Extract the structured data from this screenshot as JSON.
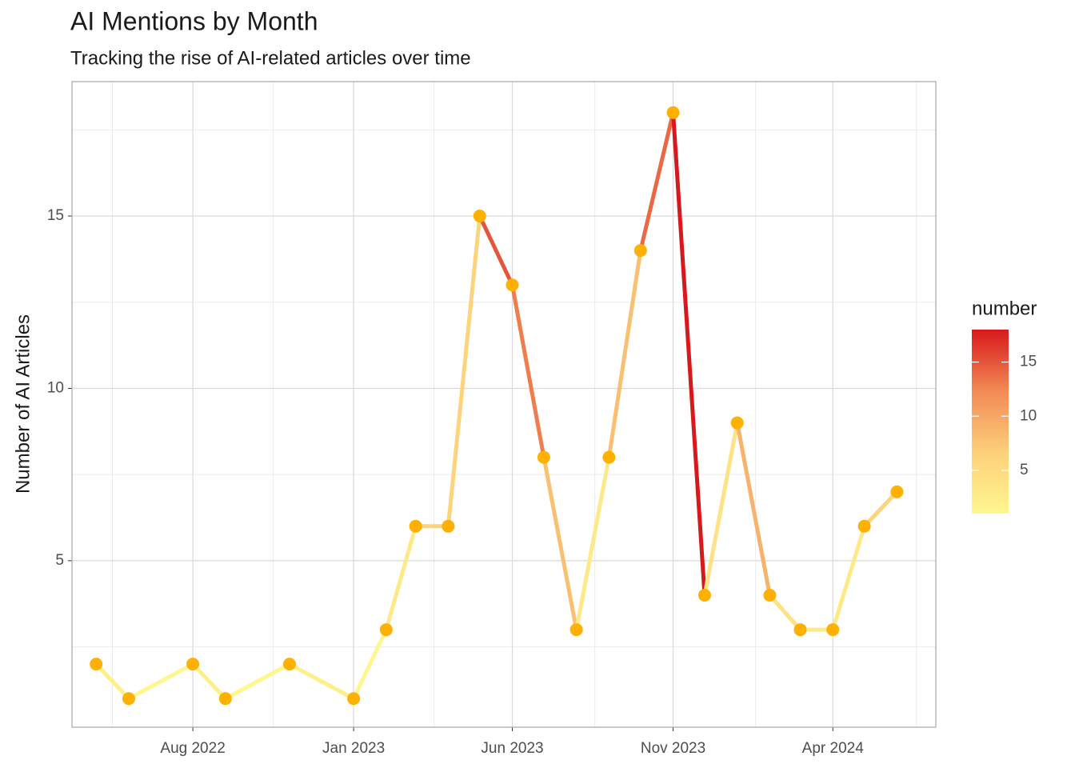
{
  "chart_data": {
    "type": "line",
    "title": "AI Mentions by Month",
    "subtitle": "Tracking the rise of AI-related articles over time",
    "y_label": "Number of AI Articles",
    "x": [
      "2022-05-01",
      "2022-06-01",
      "2022-08-01",
      "2022-09-01",
      "2022-11-01",
      "2023-01-01",
      "2023-02-01",
      "2023-03-01",
      "2023-04-01",
      "2023-05-01",
      "2023-06-01",
      "2023-07-01",
      "2023-08-01",
      "2023-09-01",
      "2023-10-01",
      "2023-11-01",
      "2023-12-01",
      "2024-01-01",
      "2024-02-01",
      "2024-03-01",
      "2024-04-01",
      "2024-05-01",
      "2024-06-01"
    ],
    "series": [
      {
        "name": "number",
        "point_color": "#FFB000",
        "values": [
          2,
          1,
          2,
          1,
          2,
          1,
          3,
          6,
          6,
          15,
          13,
          8,
          3,
          8,
          14,
          18,
          4,
          9,
          4,
          3,
          3,
          6,
          7
        ]
      }
    ],
    "xlim": [
      "2022-04-08",
      "2024-07-08"
    ],
    "xticks": [
      {
        "value": "2022-08-01",
        "label": "Aug 2022"
      },
      {
        "value": "2023-01-01",
        "label": "Jan 2023"
      },
      {
        "value": "2023-06-01",
        "label": "Jun 2023"
      },
      {
        "value": "2023-11-01",
        "label": "Nov 2023"
      },
      {
        "value": "2024-04-01",
        "label": "Apr 2024"
      }
    ],
    "ylim": [
      0.17,
      18.9
    ],
    "yticks": [
      5,
      10,
      15
    ],
    "grid": true,
    "color_scale": {
      "title": "number",
      "colors": [
        "#FFF68F",
        "#FDD07A",
        "#F28A55",
        "#D7191C"
      ],
      "limits": [
        1,
        18
      ],
      "ticks": [
        5,
        10,
        15
      ]
    }
  }
}
